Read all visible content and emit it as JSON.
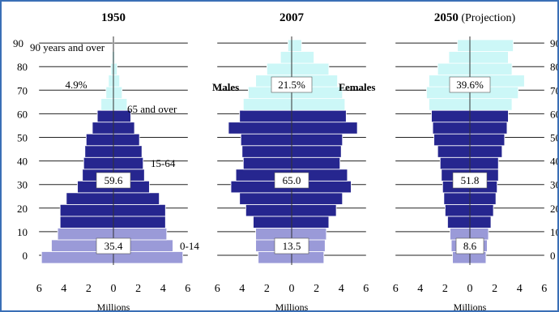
{
  "chart_data": [
    {
      "type": "bar",
      "orientation": "horizontal",
      "subtype": "population-pyramid",
      "title": "1950",
      "xlabel": "Millions",
      "xlim": [
        -6,
        6
      ],
      "x_tick_labels": [
        "6",
        "4",
        "2",
        "0",
        "2",
        "4",
        "6"
      ],
      "y_tick_labels": [
        "0",
        "10",
        "20",
        "30",
        "40",
        "50",
        "60",
        "70",
        "80",
        "90"
      ],
      "age_groups": [
        "0-4",
        "5-9",
        "10-14",
        "15-19",
        "20-24",
        "25-29",
        "30-34",
        "35-39",
        "40-44",
        "45-49",
        "50-54",
        "55-59",
        "60-64",
        "65-69",
        "70-74",
        "75-79",
        "80-84",
        "85-89",
        "90+"
      ],
      "series": [
        {
          "values": [
            5.8,
            5.0,
            4.5,
            4.3,
            4.3,
            3.8,
            2.9,
            2.5,
            2.4,
            2.3,
            2.2,
            1.7,
            1.3,
            1.0,
            0.6,
            0.4,
            0.2,
            0.1,
            0.05
          ]
        },
        {
          "values": [
            5.6,
            4.8,
            4.3,
            4.2,
            4.2,
            3.7,
            2.9,
            2.5,
            2.4,
            2.3,
            2.1,
            1.7,
            1.4,
            1.1,
            0.7,
            0.5,
            0.3,
            0.1,
            0.05
          ]
        }
      ],
      "group_shares": [
        {
          "label": "0-14",
          "value": "35.4"
        },
        {
          "label": "15-64",
          "value": "59.6"
        },
        {
          "label": "65 and over",
          "value": "4.9%"
        }
      ],
      "annotations": [
        "90 years and over"
      ]
    },
    {
      "type": "bar",
      "orientation": "horizontal",
      "subtype": "population-pyramid",
      "title": "2007",
      "xlabel": "Millions",
      "xlim": [
        -6,
        6
      ],
      "x_tick_labels": [
        "6",
        "4",
        "2",
        "0",
        "2",
        "4",
        "6"
      ],
      "age_groups": [
        "0-4",
        "5-9",
        "10-14",
        "15-19",
        "20-24",
        "25-29",
        "30-34",
        "35-39",
        "40-44",
        "45-49",
        "50-54",
        "55-59",
        "60-64",
        "65-69",
        "70-74",
        "75-79",
        "80-84",
        "85-89",
        "90+"
      ],
      "series": [
        {
          "name": "Males",
          "values": [
            2.7,
            2.9,
            2.9,
            3.1,
            3.7,
            4.2,
            4.9,
            4.5,
            3.9,
            4.0,
            4.1,
            5.1,
            4.2,
            3.9,
            3.5,
            2.9,
            2.0,
            0.9,
            0.3
          ]
        },
        {
          "name": "Females",
          "values": [
            2.6,
            2.7,
            2.8,
            3.0,
            3.6,
            4.1,
            4.8,
            4.5,
            3.9,
            4.0,
            4.1,
            5.3,
            4.4,
            4.3,
            4.1,
            3.7,
            3.0,
            1.8,
            0.8
          ]
        }
      ],
      "group_shares": [
        {
          "label": "0-14",
          "value": "13.5"
        },
        {
          "label": "15-64",
          "value": "65.0"
        },
        {
          "label": "65 and over",
          "value": "21.5%"
        }
      ]
    },
    {
      "type": "bar",
      "orientation": "horizontal",
      "subtype": "population-pyramid",
      "title": "2050",
      "title_suffix": "(Projection)",
      "xlabel": "Millions",
      "xlim": [
        -6,
        6
      ],
      "x_tick_labels": [
        "6",
        "4",
        "2",
        "0",
        "2",
        "4",
        "6"
      ],
      "age_groups": [
        "0-4",
        "5-9",
        "10-14",
        "15-19",
        "20-24",
        "25-29",
        "30-34",
        "35-39",
        "40-44",
        "45-49",
        "50-54",
        "55-59",
        "60-64",
        "65-69",
        "70-74",
        "75-79",
        "80-84",
        "85-89",
        "90+"
      ],
      "series": [
        {
          "values": [
            1.4,
            1.5,
            1.6,
            1.8,
            2.0,
            2.1,
            2.2,
            2.3,
            2.4,
            2.6,
            2.9,
            3.0,
            3.1,
            3.3,
            3.5,
            3.3,
            2.6,
            1.7,
            1.0
          ]
        },
        {
          "values": [
            1.3,
            1.4,
            1.5,
            1.7,
            1.9,
            2.1,
            2.2,
            2.3,
            2.3,
            2.6,
            2.8,
            3.0,
            3.1,
            3.4,
            3.9,
            4.4,
            3.4,
            3.1,
            3.5
          ]
        }
      ],
      "group_shares": [
        {
          "label": "0-14",
          "value": "8.6"
        },
        {
          "label": "15-64",
          "value": "51.8"
        },
        {
          "label": "65 and over",
          "value": "39.6%"
        }
      ]
    }
  ],
  "colors": {
    "child": "#9a9ad8",
    "working": "#26268f",
    "elderly": "#ccf7f7",
    "bar_edge": "#ffffff",
    "grid": "#222222",
    "frame": "#3a6fb6"
  }
}
